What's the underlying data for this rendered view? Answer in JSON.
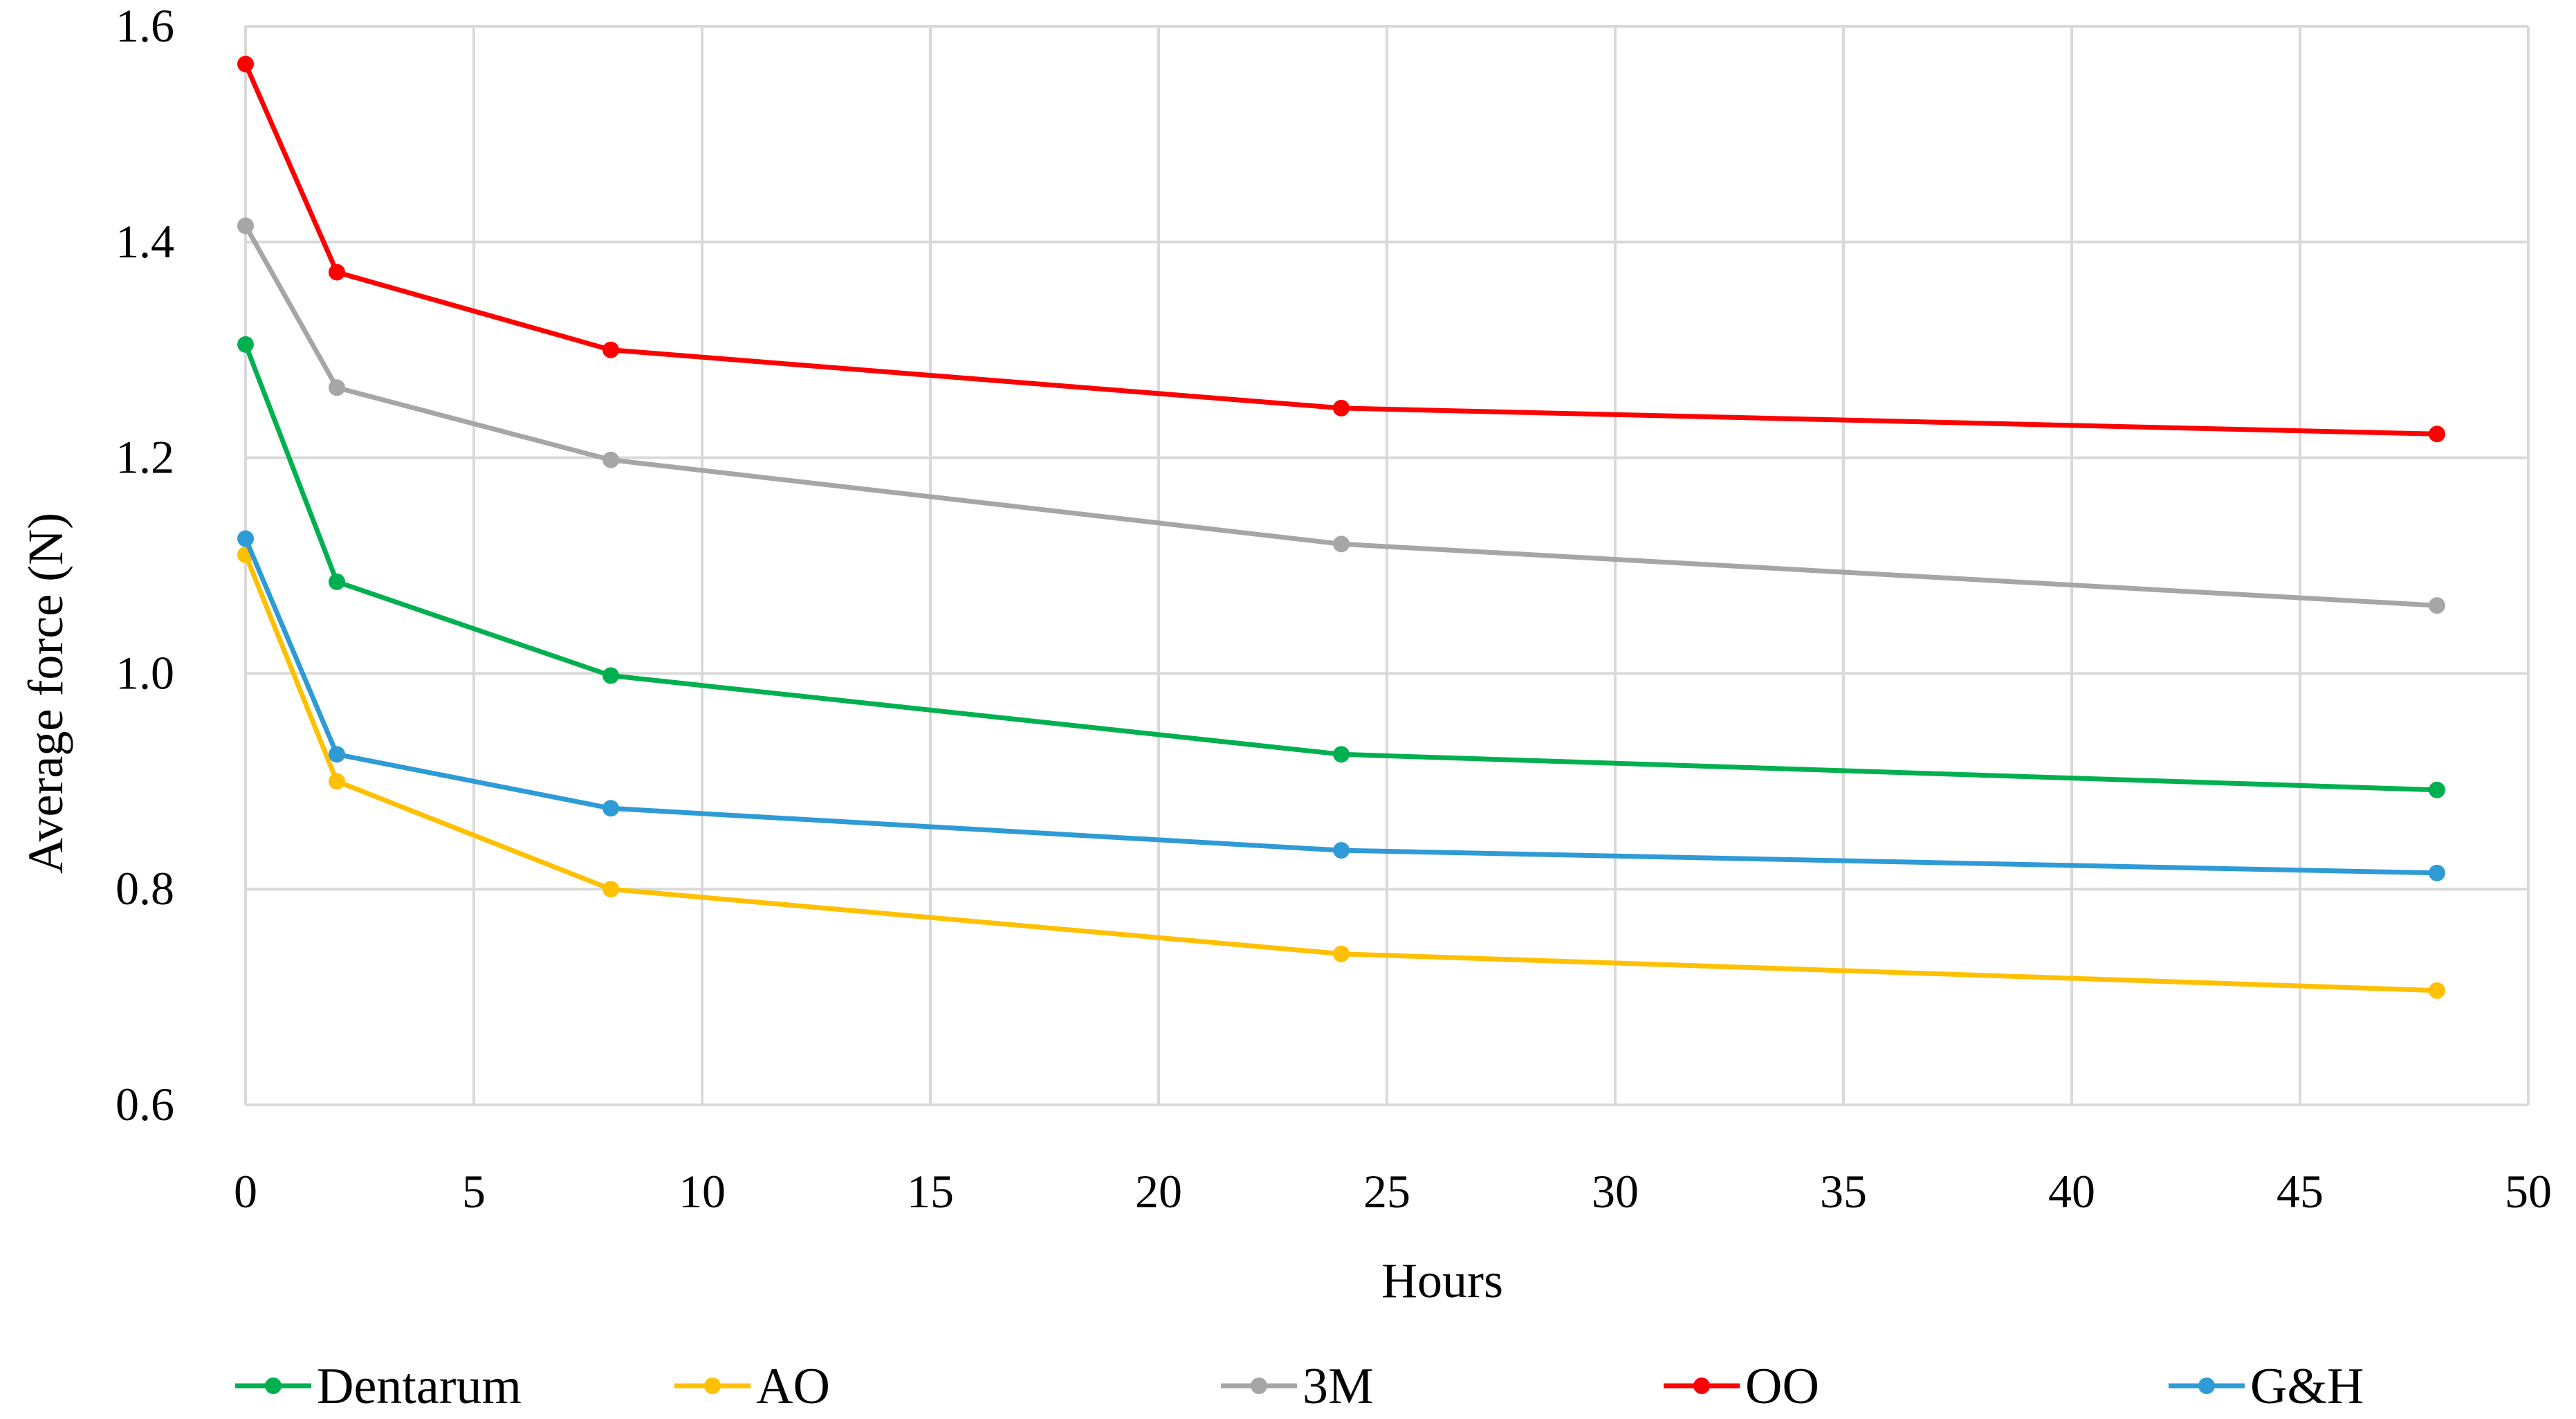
{
  "chart_data": {
    "type": "line",
    "title": "",
    "xlabel": "Hours",
    "ylabel": "Average force (N)",
    "xlim": [
      0,
      50
    ],
    "ylim": [
      0.6,
      1.6
    ],
    "grid": true,
    "legend_position": "bottom",
    "x_ticks": [
      "0",
      "5",
      "10",
      "15",
      "20",
      "25",
      "30",
      "35",
      "40",
      "45",
      "50"
    ],
    "y_ticks": [
      "0.6",
      "0.8",
      "1.0",
      "1.2",
      "1.4",
      "1.6"
    ],
    "x": [
      0,
      2,
      8,
      24,
      48
    ],
    "series": [
      {
        "name": "Dentarum",
        "color": "#00b050",
        "values": [
          1.305,
          1.085,
          0.998,
          0.925,
          0.892
        ]
      },
      {
        "name": "AO",
        "color": "#ffc000",
        "values": [
          1.11,
          0.9,
          0.8,
          0.74,
          0.706
        ]
      },
      {
        "name": "3M",
        "color": "#a6a6a6",
        "values": [
          1.415,
          1.265,
          1.198,
          1.12,
          1.063
        ]
      },
      {
        "name": "OO",
        "color": "#ff0000",
        "values": [
          1.565,
          1.372,
          1.3,
          1.246,
          1.222
        ]
      },
      {
        "name": "G&H",
        "color": "#2e9bd6",
        "values": [
          1.125,
          0.925,
          0.875,
          0.836,
          0.815
        ]
      }
    ]
  }
}
